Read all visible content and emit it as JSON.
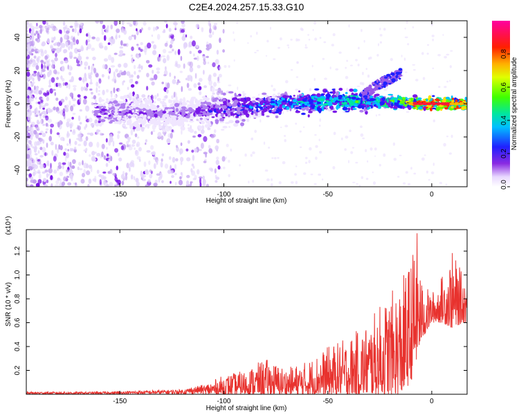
{
  "title": "C2E4.2024.257.15.33.G10",
  "chart_data": [
    {
      "type": "heatmap",
      "xlabel": "Height of straight line (km)",
      "ylabel": "Frequency (Hz)",
      "xlim": [
        -195,
        17
      ],
      "ylim": [
        -50,
        50
      ],
      "xticks": [
        -150,
        -100,
        -50,
        0
      ],
      "yticks": [
        -40,
        -20,
        0,
        20,
        40
      ],
      "colorbar": {
        "label": "Normalized spectral amplitude",
        "range": [
          0,
          1
        ],
        "ticks": [
          "0.0",
          "0.2",
          "0.4",
          "0.6",
          "0.8"
        ],
        "tick_values": [
          0,
          0.2,
          0.4,
          0.6,
          0.8
        ],
        "colormap": "rainbow (white → purple → blue → cyan → green → yellow → red → magenta)"
      },
      "ridge": [
        {
          "x": -160,
          "y": -4,
          "amp": 0.25
        },
        {
          "x": -140,
          "y": -6,
          "amp": 0.2
        },
        {
          "x": -120,
          "y": -6,
          "amp": 0.2
        },
        {
          "x": -100,
          "y": -3,
          "amp": 0.3
        },
        {
          "x": -80,
          "y": -1,
          "amp": 0.4
        },
        {
          "x": -60,
          "y": 1,
          "amp": 0.5
        },
        {
          "x": -40,
          "y": 2,
          "amp": 0.55
        },
        {
          "x": -20,
          "y": 1,
          "amp": 0.6
        },
        {
          "x": 0,
          "y": 0,
          "amp": 0.95
        },
        {
          "x": 17,
          "y": 0,
          "amp": 0.9
        }
      ],
      "branch": [
        {
          "x": -33,
          "y": 5
        },
        {
          "x": -25,
          "y": 12
        },
        {
          "x": -15,
          "y": 18
        }
      ]
    },
    {
      "type": "line",
      "xlabel": "Height of straight line (km)",
      "ylabel": "SNR (10 * v/v)",
      "y_multiplier": "(x10⁴)",
      "xlim": [
        -195,
        17
      ],
      "ylim": [
        0,
        1.38
      ],
      "xticks": [
        -150,
        -100,
        -50,
        0
      ],
      "yticks": [
        0.2,
        0.4,
        0.6,
        0.8,
        1.0,
        1.2
      ],
      "ytick_labels": [
        "0.2",
        "0.4",
        "0.6",
        "0.8",
        "1.0",
        "1.2"
      ],
      "color": "#e8322e",
      "series": [
        {
          "x": [
            -195,
            -180,
            -160,
            -140,
            -120,
            -110,
            -100,
            -90,
            -80,
            -70,
            -60,
            -50,
            -40,
            -30,
            -25,
            -20,
            -15,
            -10,
            -7,
            -5,
            0,
            5,
            10,
            15,
            17
          ],
          "min": [
            0.0,
            0.0,
            0.0,
            0.0,
            0.0,
            0.0,
            0.0,
            0.0,
            0.0,
            0.0,
            0.0,
            0.0,
            0.0,
            0.0,
            0.0,
            0.0,
            0.0,
            0.1,
            0.3,
            0.45,
            0.6,
            0.6,
            0.55,
            0.6,
            0.6
          ],
          "max": [
            0.02,
            0.02,
            0.02,
            0.03,
            0.04,
            0.08,
            0.16,
            0.2,
            0.3,
            0.22,
            0.28,
            0.4,
            0.48,
            0.62,
            0.75,
            0.85,
            0.95,
            1.15,
            1.38,
            0.95,
            0.85,
            1.0,
            1.2,
            1.0,
            1.05
          ]
        }
      ]
    }
  ]
}
